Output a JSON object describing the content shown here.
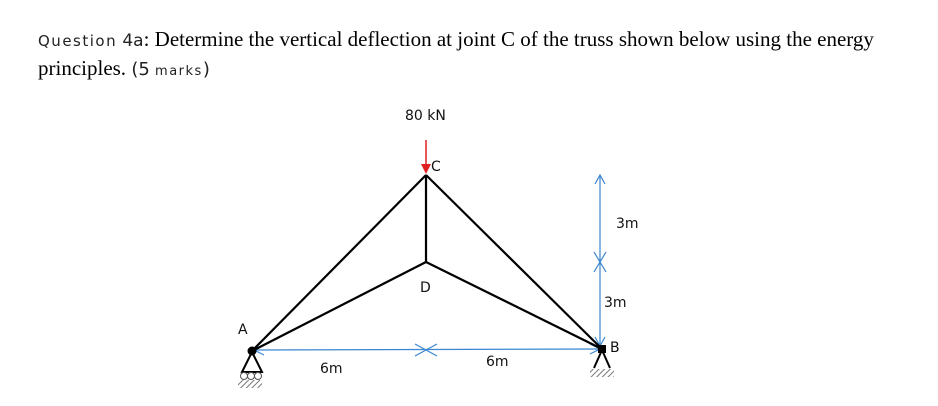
{
  "question": {
    "prefix": "Question",
    "number": "4a",
    "text": ": Determine the vertical deflection at joint C of the truss shown below using the energy principles.",
    "marks_open": "(5",
    "marks_word": "marks",
    "marks_close": ")"
  },
  "diagram": {
    "load_label": "80 kN",
    "load_color": "#e02020",
    "dimension_color": "#3a86d0",
    "joints": {
      "A": "A",
      "B": "B",
      "C": "C",
      "D": "D"
    },
    "dimensions": {
      "span_left": "6m",
      "span_right": "6m",
      "height_upper": "3m",
      "height_lower": "3m"
    },
    "supports": {
      "A": "roller",
      "B": "pin"
    }
  }
}
